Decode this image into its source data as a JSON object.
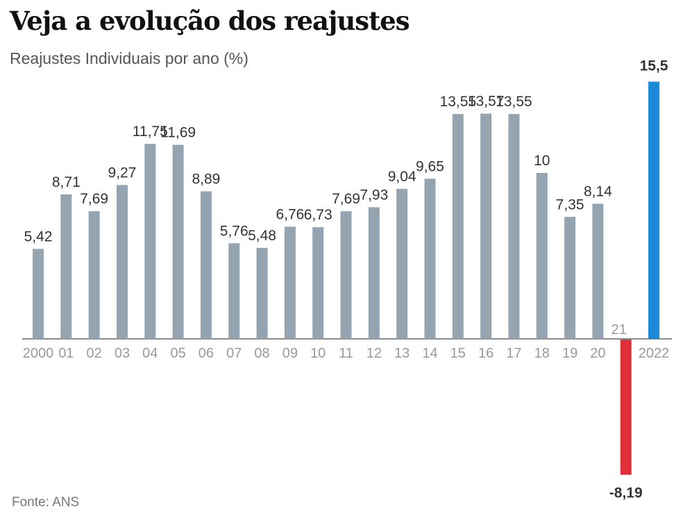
{
  "chart_data": {
    "type": "bar",
    "title": "Veja a evolução dos reajustes",
    "subtitle": "Reajustes Individuais por ano (%)",
    "source": "Fonte: ANS",
    "xlabel": "",
    "ylabel": "",
    "ylim": [
      -8.19,
      15.5
    ],
    "grid": false,
    "categories": [
      "2000",
      "01",
      "02",
      "03",
      "04",
      "05",
      "06",
      "07",
      "08",
      "09",
      "10",
      "11",
      "12",
      "13",
      "14",
      "15",
      "16",
      "17",
      "18",
      "19",
      "20",
      "21",
      "2022"
    ],
    "values": [
      5.42,
      8.71,
      7.69,
      9.27,
      11.75,
      11.69,
      8.89,
      5.76,
      5.48,
      6.76,
      6.73,
      7.69,
      7.93,
      9.04,
      9.65,
      13.55,
      13.57,
      13.55,
      10,
      7.35,
      8.14,
      -8.19,
      15.5
    ],
    "labels": [
      "5,42",
      "8,71",
      "7,69",
      "9,27",
      "11,75",
      "11,69",
      "8,89",
      "5,76",
      "5,48",
      "6,76",
      "6,73",
      "7,69",
      "7,93",
      "9,04",
      "9,65",
      "13,55",
      "13,57",
      "13,55",
      "10",
      "7,35",
      "8,14",
      "-8,19",
      "15,5"
    ],
    "colors": {
      "default": "#94a4b0",
      "negative": "#e0303a",
      "highlight": "#1b8ad8",
      "baseline": "#666666"
    }
  }
}
